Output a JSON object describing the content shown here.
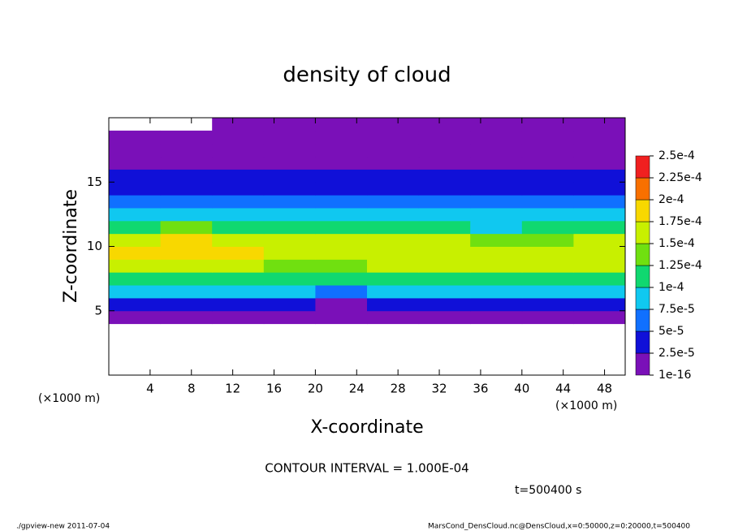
{
  "chart_data": {
    "type": "heatmap",
    "title": "density of cloud",
    "xlabel": "X-coordinate",
    "ylabel": "Z-coordinate",
    "x_unit": "(×1000 m)",
    "contour_note": "CONTOUR INTERVAL = 1.000E-04",
    "time_note": "t=500400 s",
    "footer_left": "./gpview-new  2011-07-04",
    "footer_right": "MarsCond_DensCloud.nc@DensCloud,x=0:50000,z=0:20000,t=500400",
    "xlim": [
      0,
      50
    ],
    "ylim": [
      0,
      20
    ],
    "xticks": [
      4,
      8,
      12,
      16,
      20,
      24,
      28,
      32,
      36,
      40,
      44,
      48
    ],
    "yticks": [
      5,
      10,
      15
    ],
    "x": [
      2.5,
      7.5,
      12.5,
      17.5,
      22.5,
      27.5,
      32.5,
      37.5,
      42.5,
      47.5
    ],
    "y": [
      0.5,
      1.5,
      2.5,
      3.5,
      4.5,
      5.5,
      6.5,
      7.5,
      8.5,
      9.5,
      10.5,
      11.5,
      12.5,
      13.5,
      14.5,
      15.5,
      16.5,
      17.5,
      18.5,
      19.5
    ],
    "values": [
      [
        null,
        null,
        null,
        null,
        null,
        null,
        null,
        null,
        null,
        null
      ],
      [
        null,
        null,
        null,
        null,
        null,
        null,
        null,
        null,
        null,
        null
      ],
      [
        null,
        null,
        null,
        null,
        null,
        null,
        null,
        null,
        null,
        null
      ],
      [
        null,
        null,
        null,
        null,
        null,
        null,
        null,
        null,
        null,
        null
      ],
      [
        1e-05,
        1e-05,
        1e-05,
        1e-05,
        1e-05,
        1e-05,
        1e-05,
        1e-05,
        1e-05,
        1e-05
      ],
      [
        4e-05,
        4e-05,
        4e-05,
        4e-05,
        2e-05,
        4e-05,
        4e-05,
        4e-05,
        4e-05,
        4e-05
      ],
      [
        8e-05,
        8e-05,
        8e-05,
        8e-05,
        7e-05,
        8e-05,
        8e-05,
        8e-05,
        8e-05,
        8e-05
      ],
      [
        0.00012,
        0.00012,
        0.00011,
        0.00011,
        0.00011,
        0.00012,
        0.00012,
        0.00012,
        0.00012,
        0.00012
      ],
      [
        0.00016,
        0.00017,
        0.00015,
        0.00014,
        0.00014,
        0.00015,
        0.00016,
        0.00015,
        0.00015,
        0.00016
      ],
      [
        0.00018,
        0.00019,
        0.00018,
        0.00016,
        0.00016,
        0.00017,
        0.00017,
        0.00016,
        0.00016,
        0.00017
      ],
      [
        0.00016,
        0.00018,
        0.00017,
        0.00015,
        0.00015,
        0.00016,
        0.00015,
        0.00013,
        0.00014,
        0.00015
      ],
      [
        0.00012,
        0.00013,
        0.00012,
        0.00012,
        0.00012,
        0.00012,
        0.00011,
        8e-05,
        0.0001,
        0.00011
      ],
      [
        9e-05,
        9e-05,
        9e-05,
        9e-05,
        9e-05,
        9e-05,
        9e-05,
        8e-05,
        9e-05,
        9e-05
      ],
      [
        7e-05,
        7e-05,
        7e-05,
        7e-05,
        7e-05,
        7e-05,
        7e-05,
        6e-05,
        7e-05,
        7e-05
      ],
      [
        4e-05,
        4e-05,
        4e-05,
        4e-05,
        4e-05,
        4e-05,
        4e-05,
        4e-05,
        4e-05,
        4e-05
      ],
      [
        3e-05,
        3e-05,
        3e-05,
        3e-05,
        3e-05,
        3e-05,
        3e-05,
        3e-05,
        3e-05,
        3e-05
      ],
      [
        2e-05,
        2e-05,
        2e-05,
        2e-05,
        2e-05,
        2e-05,
        2e-05,
        2e-05,
        2e-05,
        2e-05
      ],
      [
        1e-05,
        1e-05,
        1e-05,
        1e-05,
        1e-05,
        1e-05,
        1e-05,
        1e-05,
        1e-05,
        1e-05
      ],
      [
        1e-05,
        1e-05,
        1e-05,
        1e-05,
        1e-05,
        1e-05,
        1e-05,
        1e-05,
        1e-05,
        1e-05
      ],
      [
        null,
        null,
        5e-06,
        5e-06,
        5e-06,
        5e-06,
        5e-06,
        5e-06,
        5e-06,
        5e-06
      ]
    ],
    "colorbar": {
      "levels": [
        {
          "value": 1e-16,
          "label": "1e-16"
        },
        {
          "value": 2.5e-05,
          "label": "2.5e-5"
        },
        {
          "value": 5e-05,
          "label": "5e-5"
        },
        {
          "value": 7.5e-05,
          "label": "7.5e-5"
        },
        {
          "value": 0.0001,
          "label": "1e-4"
        },
        {
          "value": 0.000125,
          "label": "1.25e-4"
        },
        {
          "value": 0.00015,
          "label": "1.5e-4"
        },
        {
          "value": 0.000175,
          "label": "1.75e-4"
        },
        {
          "value": 0.0002,
          "label": "2e-4"
        },
        {
          "value": 0.000225,
          "label": "2.25e-4"
        },
        {
          "value": 0.00025,
          "label": "2.5e-4"
        }
      ],
      "colors": [
        "#7a10b8",
        "#1010d8",
        "#1070ff",
        "#10c8f0",
        "#10d870",
        "#70e010",
        "#c8f000",
        "#f8d800",
        "#f87000",
        "#f02020"
      ]
    }
  }
}
